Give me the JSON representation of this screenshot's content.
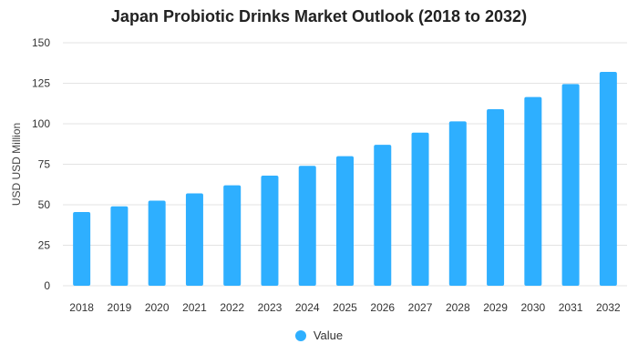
{
  "chart_data": {
    "type": "bar",
    "title": "Japan Probiotic Drinks Market Outlook (2018 to 2032)",
    "xlabel": "",
    "ylabel": "USD USD Million",
    "categories": [
      "2018",
      "2019",
      "2020",
      "2021",
      "2022",
      "2023",
      "2024",
      "2025",
      "2026",
      "2027",
      "2028",
      "2029",
      "2030",
      "2031",
      "2032"
    ],
    "series": [
      {
        "name": "Value",
        "values": [
          45.5,
          49,
          52.5,
          57,
          62,
          68,
          74,
          80,
          87,
          94.5,
          101.5,
          109,
          116.5,
          124.5,
          132
        ]
      }
    ],
    "ylim": [
      0,
      150
    ],
    "yticks": [
      0,
      25,
      50,
      75,
      100,
      125,
      150
    ],
    "grid": true,
    "legend_position": "bottom",
    "colors": {
      "bar": "#2EAFFF",
      "grid": "#e3e3e3"
    }
  }
}
